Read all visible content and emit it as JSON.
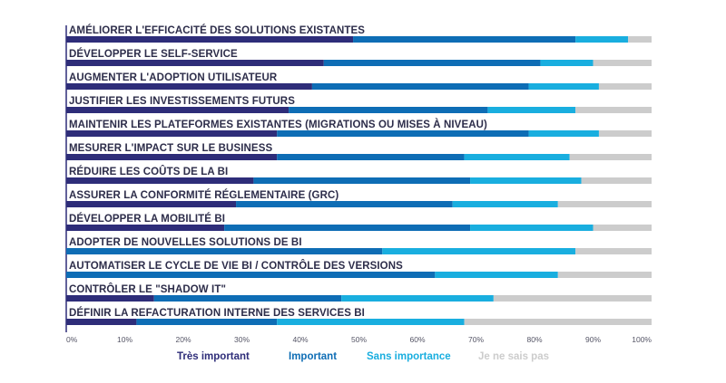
{
  "chart_data": {
    "type": "bar",
    "orientation": "horizontal",
    "stacked": true,
    "categories": [
      "AMÉLIORER L'EFFICACITÉ DES SOLUTIONS EXISTANTES",
      "DÉVELOPPER LE SELF-SERVICE",
      "AUGMENTER L'ADOPTION UTILISATEUR",
      "JUSTIFIER LES INVESTISSEMENTS FUTURS",
      "MAINTENIR LES PLATEFORMES EXISTANTES (MIGRATIONS OU MISES À NIVEAU)",
      "MESURER L'IMPACT SUR LE BUSINESS",
      "RÉDUIRE LES COÛTS DE LA BI",
      "ASSURER LA CONFORMITÉ RÉGLEMENTAIRE (GRC)",
      "DÉVELOPPER LA MOBILITÉ BI",
      "ADOPTER DE NOUVELLES SOLUTIONS DE BI",
      "AUTOMATISER LE CYCLE DE VIE BI / CONTRÔLE DES VERSIONS",
      "CONTRÔLER LE \"SHADOW IT\"",
      "DÉFINIR LA REFACTURATION INTERNE DES SERVICES BI"
    ],
    "series": [
      {
        "name": "Très important",
        "color": "#2e2d79",
        "values": [
          49,
          44,
          42,
          38,
          36,
          36,
          32,
          29,
          27,
          0,
          0,
          15,
          12
        ]
      },
      {
        "name": "Important",
        "color": "#0e6db5",
        "values": [
          38,
          37,
          37,
          34,
          43,
          32,
          37,
          37,
          42,
          54,
          63,
          32,
          24
        ]
      },
      {
        "name": "Sans importance",
        "color": "#19aedf",
        "values": [
          9,
          9,
          12,
          15,
          12,
          18,
          19,
          18,
          21,
          33,
          21,
          26,
          32
        ]
      },
      {
        "name": "Je ne sais pas",
        "color": "#cccccc",
        "values": [
          4,
          10,
          9,
          13,
          9,
          14,
          12,
          16,
          10,
          13,
          16,
          27,
          32
        ]
      }
    ],
    "x_ticks": [
      "0%",
      "10%",
      "20%",
      "30%",
      "40%",
      "50%",
      "60%",
      "70%",
      "80%",
      "90%",
      "100%"
    ],
    "xlim": [
      0,
      100
    ],
    "xlabel": "",
    "ylabel": "",
    "title": "",
    "legend_position": "bottom",
    "grid": false
  }
}
